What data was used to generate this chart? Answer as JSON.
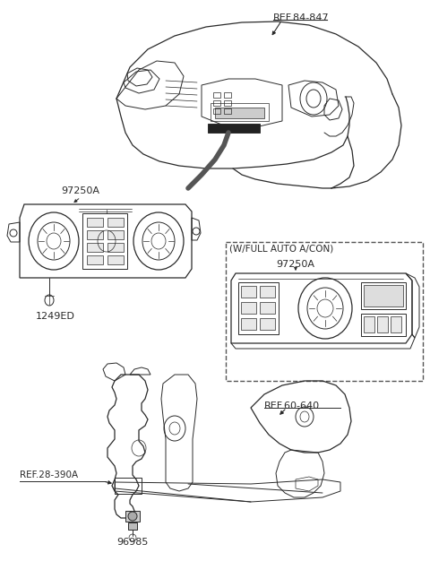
{
  "bg_color": "#ffffff",
  "line_color": "#2a2a2a",
  "labels": {
    "ref_84_847": "REF.84-847",
    "ref_60_640": "REF.60-640",
    "ref_28_390A": "REF.28-390A",
    "part_97250A_1": "97250A",
    "part_97250A_2": "97250A",
    "part_1249ED": "1249ED",
    "part_96985": "96985",
    "wfull_auto": "(W/FULL AUTO A/CON)"
  },
  "figsize": [
    4.8,
    6.55
  ],
  "dpi": 100
}
